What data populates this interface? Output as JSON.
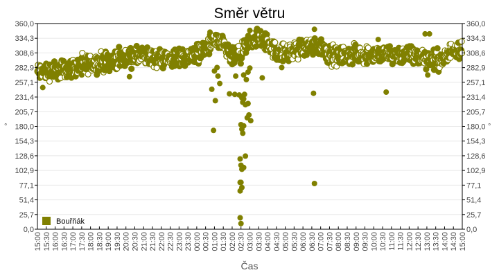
{
  "chart_data": {
    "type": "scatter",
    "title": "Směr větru",
    "xlabel": "Čas",
    "ylabel": "°",
    "ylabel_right": "°",
    "ylim": [
      0,
      360
    ],
    "y_ticks": [
      "0,0",
      "25,7",
      "51,4",
      "77,1",
      "102,9",
      "128,6",
      "154,3",
      "180,0",
      "205,7",
      "231,4",
      "257,1",
      "282,9",
      "308,6",
      "334,3",
      "360,0"
    ],
    "x_ticks": [
      "15:00",
      "15:30",
      "16:00",
      "16:30",
      "17:00",
      "17:30",
      "18:00",
      "18:30",
      "19:00",
      "19:30",
      "20:00",
      "20:30",
      "21:00",
      "21:30",
      "22:00",
      "22:30",
      "23:00",
      "23:30",
      "00:00",
      "00:30",
      "01:00",
      "01:30",
      "02:00",
      "02:30",
      "03:00",
      "03:30",
      "04:00",
      "04:30",
      "05:00",
      "05:30",
      "06:00",
      "06:30",
      "07:00",
      "07:30",
      "08:00",
      "08:30",
      "09:00",
      "09:30",
      "10:00",
      "10:30",
      "11:00",
      "11:30",
      "12:00",
      "12:30",
      "13:00",
      "13:30",
      "14:00",
      "14:30",
      "15:00"
    ],
    "grid": true,
    "legend_position": "bottom-left inside",
    "series": [
      {
        "name": "Bouřňák",
        "color": "#808000",
        "trend": [
          {
            "x": "15:00",
            "y": 275
          },
          {
            "x": "16:00",
            "y": 278
          },
          {
            "x": "17:00",
            "y": 282
          },
          {
            "x": "18:00",
            "y": 290
          },
          {
            "x": "19:00",
            "y": 295
          },
          {
            "x": "20:00",
            "y": 300
          },
          {
            "x": "21:00",
            "y": 303
          },
          {
            "x": "22:00",
            "y": 298
          },
          {
            "x": "23:00",
            "y": 300
          },
          {
            "x": "00:00",
            "y": 308
          },
          {
            "x": "00:30",
            "y": 315
          },
          {
            "x": "01:00",
            "y": 330
          },
          {
            "x": "01:30",
            "y": 320
          },
          {
            "x": "02:00",
            "y": 300
          },
          {
            "x": "02:30",
            "y": 305
          },
          {
            "x": "03:00",
            "y": 330
          },
          {
            "x": "03:30",
            "y": 335
          },
          {
            "x": "04:00",
            "y": 325
          },
          {
            "x": "04:30",
            "y": 310
          },
          {
            "x": "05:00",
            "y": 308
          },
          {
            "x": "05:30",
            "y": 312
          },
          {
            "x": "06:00",
            "y": 318
          },
          {
            "x": "06:30",
            "y": 320
          },
          {
            "x": "07:00",
            "y": 322
          },
          {
            "x": "07:30",
            "y": 305
          },
          {
            "x": "08:00",
            "y": 302
          },
          {
            "x": "09:00",
            "y": 306
          },
          {
            "x": "10:00",
            "y": 305
          },
          {
            "x": "11:00",
            "y": 306
          },
          {
            "x": "12:00",
            "y": 305
          },
          {
            "x": "13:00",
            "y": 300
          },
          {
            "x": "13:30",
            "y": 298
          },
          {
            "x": "14:00",
            "y": 296
          },
          {
            "x": "14:30",
            "y": 318
          },
          {
            "x": "15:00",
            "y": 316
          }
        ],
        "outliers": [
          {
            "x_index": 19.9,
            "y": 173
          },
          {
            "x_index": 19.7,
            "y": 245
          },
          {
            "x_index": 20.1,
            "y": 225
          },
          {
            "x_index": 20.6,
            "y": 255
          },
          {
            "x_index": 21.7,
            "y": 237
          },
          {
            "x_index": 22.3,
            "y": 236
          },
          {
            "x_index": 22.8,
            "y": 235
          },
          {
            "x_index": 22.9,
            "y": 20
          },
          {
            "x_index": 23.0,
            "y": 10
          },
          {
            "x_index": 22.9,
            "y": 67
          },
          {
            "x_index": 22.9,
            "y": 82
          },
          {
            "x_index": 23.0,
            "y": 82
          },
          {
            "x_index": 23.1,
            "y": 73
          },
          {
            "x_index": 22.9,
            "y": 123
          },
          {
            "x_index": 23.0,
            "y": 112
          },
          {
            "x_index": 23.1,
            "y": 105
          },
          {
            "x_index": 23.3,
            "y": 108
          },
          {
            "x_index": 23.5,
            "y": 128
          },
          {
            "x_index": 23.0,
            "y": 183
          },
          {
            "x_index": 23.1,
            "y": 175
          },
          {
            "x_index": 23.2,
            "y": 168
          },
          {
            "x_index": 23.3,
            "y": 181
          },
          {
            "x_index": 23.1,
            "y": 230
          },
          {
            "x_index": 23.3,
            "y": 228
          },
          {
            "x_index": 23.4,
            "y": 236
          },
          {
            "x_index": 23.2,
            "y": 222
          },
          {
            "x_index": 23.5,
            "y": 218
          },
          {
            "x_index": 23.8,
            "y": 220
          },
          {
            "x_index": 23.7,
            "y": 195
          },
          {
            "x_index": 23.9,
            "y": 200
          },
          {
            "x_index": 24.1,
            "y": 190
          },
          {
            "x_index": 23.6,
            "y": 262
          },
          {
            "x_index": 23.8,
            "y": 275
          },
          {
            "x_index": 24.0,
            "y": 282
          },
          {
            "x_index": 23.3,
            "y": 270
          },
          {
            "x_index": 22.4,
            "y": 268
          },
          {
            "x_index": 20.0,
            "y": 277
          },
          {
            "x_index": 20.3,
            "y": 283
          },
          {
            "x_index": 20.4,
            "y": 268
          },
          {
            "x_index": 25.4,
            "y": 265
          },
          {
            "x_index": 27.6,
            "y": 283
          },
          {
            "x_index": 31.2,
            "y": 238
          },
          {
            "x_index": 31.3,
            "y": 80
          },
          {
            "x_index": 39.4,
            "y": 240
          },
          {
            "x_index": 44.1,
            "y": 270
          },
          {
            "x_index": 5.0,
            "y": 270
          },
          {
            "x_index": 7.0,
            "y": 277
          },
          {
            "x_index": 10.4,
            "y": 267
          },
          {
            "x_index": 0.6,
            "y": 248
          },
          {
            "x_index": 31.3,
            "y": 350
          },
          {
            "x_index": 43.8,
            "y": 342
          },
          {
            "x_index": 44.3,
            "y": 342
          },
          {
            "x_index": 19.5,
            "y": 345
          },
          {
            "x_index": 24.0,
            "y": 348
          },
          {
            "x_index": 38.5,
            "y": 332
          }
        ]
      }
    ]
  },
  "legend": {
    "label": "Bouřňák",
    "color": "#808000"
  }
}
